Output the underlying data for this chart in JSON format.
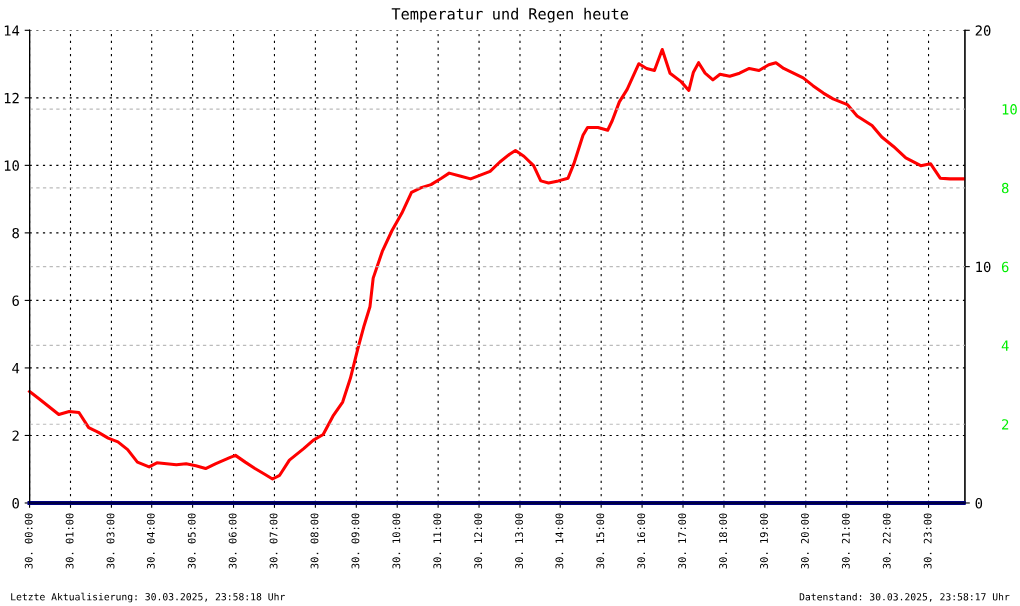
{
  "chart_data": {
    "type": "line",
    "title": "Temperatur und Regen heute",
    "xlim": [
      "2025-03-30T00:00",
      "2025-03-31T00:00"
    ],
    "xticks": [
      {
        "value": "2025-03-30T00:00",
        "label": "30. 00:00"
      },
      {
        "value": "2025-03-30T01:03",
        "label": "30. 01:00"
      },
      {
        "value": "2025-03-30T02:06",
        "label": "30. 03:00"
      },
      {
        "value": "2025-03-30T03:08",
        "label": "30. 04:00"
      },
      {
        "value": "2025-03-30T04:11",
        "label": "30. 05:00"
      },
      {
        "value": "2025-03-30T05:14",
        "label": "30. 06:00"
      },
      {
        "value": "2025-03-30T06:17",
        "label": "30. 07:00"
      },
      {
        "value": "2025-03-30T07:20",
        "label": "30. 08:00"
      },
      {
        "value": "2025-03-30T08:23",
        "label": "30. 09:00"
      },
      {
        "value": "2025-03-30T09:26",
        "label": "30. 10:00"
      },
      {
        "value": "2025-03-30T10:29",
        "label": "30. 11:00"
      },
      {
        "value": "2025-03-30T11:32",
        "label": "30. 12:00"
      },
      {
        "value": "2025-03-30T12:35",
        "label": "30. 13:00"
      },
      {
        "value": "2025-03-30T13:37",
        "label": "30. 14:00"
      },
      {
        "value": "2025-03-30T14:40",
        "label": "30. 15:00"
      },
      {
        "value": "2025-03-30T15:43",
        "label": "30. 16:00"
      },
      {
        "value": "2025-03-30T16:46",
        "label": "30. 17:00"
      },
      {
        "value": "2025-03-30T17:49",
        "label": "30. 18:00"
      },
      {
        "value": "2025-03-30T18:52",
        "label": "30. 19:00"
      },
      {
        "value": "2025-03-30T19:55",
        "label": "30. 20:00"
      },
      {
        "value": "2025-03-30T20:58",
        "label": "30. 21:00"
      },
      {
        "value": "2025-03-30T22:01",
        "label": "30. 22:00"
      },
      {
        "value": "2025-03-30T23:04",
        "label": "30. 23:00"
      }
    ],
    "ylim": [
      0,
      14
    ],
    "yticks": [
      0,
      2,
      4,
      6,
      8,
      10,
      12,
      14
    ],
    "y2lim": [
      0,
      20
    ],
    "y2ticks": [
      0,
      10,
      20
    ],
    "y3lim": [
      0,
      12
    ],
    "y3ticks": [
      2,
      4,
      6,
      8,
      10
    ],
    "grid": true,
    "line_style": "solid",
    "marker": "none",
    "annotations": [
      "Letzte Aktualisierung: 30.03.2025, 23:58:18 Uhr",
      "Datenstand: 30.03.2025, 23:58:17 Uhr"
    ],
    "series": [
      {
        "color": "#ff0000",
        "x": [
          "2025-03-30T00:00",
          "2025-03-30T00:15",
          "2025-03-30T00:30",
          "2025-03-30T00:45",
          "2025-03-30T01:01",
          "2025-03-30T01:16",
          "2025-03-30T01:31",
          "2025-03-30T01:46",
          "2025-03-30T02:01",
          "2025-03-30T02:16",
          "2025-03-30T02:31",
          "2025-03-30T02:46",
          "2025-03-30T03:04",
          "2025-03-30T03:16",
          "2025-03-30T03:46",
          "2025-03-30T04:01",
          "2025-03-30T04:16",
          "2025-03-30T04:31",
          "2025-03-30T04:46",
          "2025-03-30T05:09",
          "2025-03-30T05:17",
          "2025-03-30T05:32",
          "2025-03-30T05:47",
          "2025-03-30T06:02",
          "2025-03-30T06:14",
          "2025-03-30T06:25",
          "2025-03-30T06:40",
          "2025-03-30T07:02",
          "2025-03-30T07:17",
          "2025-03-30T07:32",
          "2025-03-30T07:47",
          "2025-03-30T08:02",
          "2025-03-30T08:14",
          "2025-03-30T08:25",
          "2025-03-30T08:35",
          "2025-03-30T08:44",
          "2025-03-30T08:49",
          "2025-03-30T09:03",
          "2025-03-30T09:18",
          "2025-03-30T09:33",
          "2025-03-30T09:48",
          "2025-03-30T10:03",
          "2025-03-30T10:18",
          "2025-03-30T10:34",
          "2025-03-30T10:46",
          "2025-03-30T11:04",
          "2025-03-30T11:19",
          "2025-03-30T11:34",
          "2025-03-30T11:49",
          "2025-03-30T12:04",
          "2025-03-30T12:19",
          "2025-03-30T12:28",
          "2025-03-30T12:41",
          "2025-03-30T12:56",
          "2025-03-30T13:07",
          "2025-03-30T13:19",
          "2025-03-30T13:34",
          "2025-03-30T13:49",
          "2025-03-30T13:58",
          "2025-03-30T14:12",
          "2025-03-30T14:19",
          "2025-03-30T14:35",
          "2025-03-30T14:50",
          "2025-03-30T14:57",
          "2025-03-30T15:08",
          "2025-03-30T15:20",
          "2025-03-30T15:28",
          "2025-03-30T15:38",
          "2025-03-30T15:50",
          "2025-03-30T16:02",
          "2025-03-30T16:14",
          "2025-03-30T16:26",
          "2025-03-30T16:43",
          "2025-03-30T16:55",
          "2025-03-30T17:02",
          "2025-03-30T17:10",
          "2025-03-30T17:20",
          "2025-03-30T17:32",
          "2025-03-30T17:43",
          "2025-03-30T17:58",
          "2025-03-30T18:13",
          "2025-03-30T18:28",
          "2025-03-30T18:43",
          "2025-03-30T18:58",
          "2025-03-30T19:09",
          "2025-03-30T19:21",
          "2025-03-30T19:36",
          "2025-03-30T19:51",
          "2025-03-30T20:06",
          "2025-03-30T20:22",
          "2025-03-30T20:37",
          "2025-03-30T20:59",
          "2025-03-30T21:14",
          "2025-03-30T21:37",
          "2025-03-30T21:52",
          "2025-03-30T22:10",
          "2025-03-30T22:29",
          "2025-03-30T22:52",
          "2025-03-30T23:07",
          "2025-03-30T23:22",
          "2025-03-30T23:37",
          "2025-03-30T23:58"
        ],
        "values": [
          3.3,
          3.08,
          2.85,
          2.62,
          2.71,
          2.68,
          2.23,
          2.09,
          1.92,
          1.81,
          1.58,
          1.21,
          1.07,
          1.19,
          1.13,
          1.16,
          1.1,
          1.02,
          1.16,
          1.35,
          1.41,
          1.21,
          1.02,
          0.85,
          0.71,
          0.82,
          1.27,
          1.61,
          1.86,
          2.03,
          2.57,
          2.99,
          3.7,
          4.54,
          5.25,
          5.81,
          6.66,
          7.45,
          8.07,
          8.58,
          9.2,
          9.34,
          9.43,
          9.62,
          9.77,
          9.68,
          9.6,
          9.71,
          9.82,
          10.1,
          10.33,
          10.44,
          10.27,
          9.99,
          9.54,
          9.48,
          9.54,
          9.62,
          10.05,
          10.89,
          11.12,
          11.12,
          11.04,
          11.32,
          11.88,
          12.25,
          12.59,
          13.01,
          12.87,
          12.81,
          13.43,
          12.73,
          12.48,
          12.22,
          12.76,
          13.04,
          12.73,
          12.53,
          12.7,
          12.64,
          12.73,
          12.87,
          12.81,
          12.98,
          13.04,
          12.87,
          12.73,
          12.59,
          12.36,
          12.14,
          11.97,
          11.8,
          11.46,
          11.18,
          10.84,
          10.56,
          10.22,
          9.99,
          10.05,
          9.62,
          9.6,
          9.6
        ]
      },
      {
        "color": "#000080",
        "axis": "y2",
        "x": [
          "2025-03-30T00:00",
          "2025-03-30T23:58"
        ],
        "values": [
          0,
          0
        ]
      }
    ]
  }
}
